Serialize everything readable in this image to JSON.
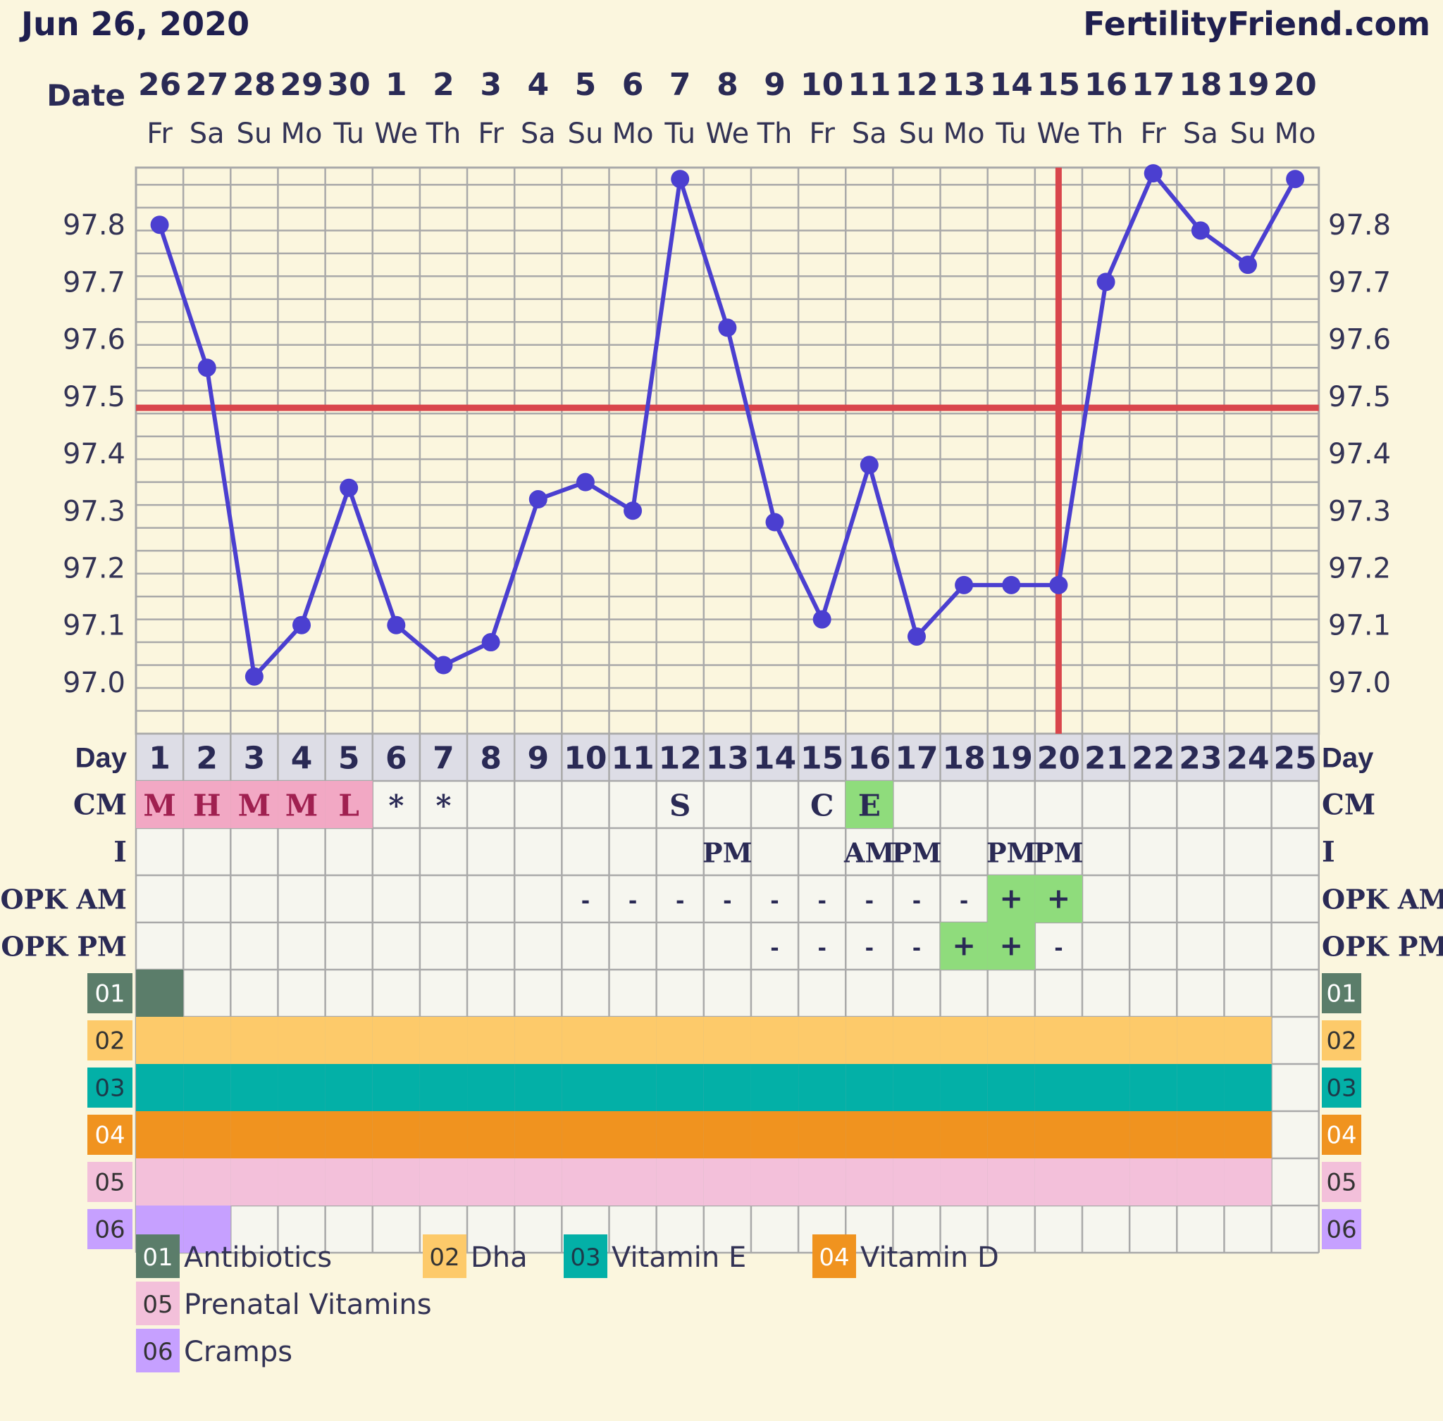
{
  "header": {
    "date": "Jun 26, 2020",
    "site": "FertilityFriend.com"
  },
  "row_labels": {
    "date": "Date",
    "day": "Day",
    "cm": "CM",
    "intercourse": "I",
    "opk_am": "OPK AM",
    "opk_pm": "OPK PM"
  },
  "colors": {
    "background": "#fbf6de",
    "grid": "#a9a9a9",
    "line": "#4b3fd0",
    "coverline": "#d9464c",
    "cm_pink": "#f2a8c4",
    "cm_green": "#8fdc7c",
    "opk_green": "#8fdc7c",
    "day_row": "#dddde6",
    "cell_bg": "#f6f6ef",
    "text": "#2a2a55"
  },
  "chart_data": {
    "type": "line",
    "title": "",
    "dates": [
      "26",
      "27",
      "28",
      "29",
      "30",
      "1",
      "2",
      "3",
      "4",
      "5",
      "6",
      "7",
      "8",
      "9",
      "10",
      "11",
      "12",
      "13",
      "14",
      "15",
      "16",
      "17",
      "18",
      "19",
      "20"
    ],
    "weekdays": [
      "Fr",
      "Sa",
      "Su",
      "Mo",
      "Tu",
      "We",
      "Th",
      "Fr",
      "Sa",
      "Su",
      "Mo",
      "Tu",
      "We",
      "Th",
      "Fr",
      "Sa",
      "Su",
      "Mo",
      "Tu",
      "We",
      "Th",
      "Fr",
      "Sa",
      "Su",
      "Mo"
    ],
    "days": [
      "1",
      "2",
      "3",
      "4",
      "5",
      "6",
      "7",
      "8",
      "9",
      "10",
      "11",
      "12",
      "13",
      "14",
      "15",
      "16",
      "17",
      "18",
      "19",
      "20",
      "21",
      "22",
      "23",
      "24",
      "25"
    ],
    "temps": [
      97.8,
      97.55,
      97.01,
      97.1,
      97.34,
      97.1,
      97.03,
      97.07,
      97.32,
      97.35,
      97.3,
      97.88,
      97.62,
      97.28,
      97.11,
      97.38,
      97.08,
      97.17,
      97.17,
      97.17,
      97.7,
      97.89,
      97.79,
      97.73,
      97.88
    ],
    "yticks": [
      "97.0",
      "97.1",
      "97.2",
      "97.3",
      "97.4",
      "97.5",
      "97.6",
      "97.7",
      "97.8"
    ],
    "ylim": [
      96.91,
      97.9
    ],
    "coverline": 97.48,
    "ovulation_day": 20,
    "cm": [
      "M",
      "H",
      "M",
      "M",
      "L",
      "*",
      "*",
      "",
      "",
      "",
      "",
      "S",
      "",
      "",
      "C",
      "E",
      "",
      "",
      "",
      "",
      "",
      "",
      "",
      "",
      ""
    ],
    "cm_color": [
      "pink",
      "pink",
      "pink",
      "pink",
      "pink",
      "",
      "",
      "",
      "",
      "",
      "",
      "",
      "",
      "",
      "",
      "green",
      "",
      "",
      "",
      "",
      "",
      "",
      "",
      "",
      ""
    ],
    "intercourse": [
      "",
      "",
      "",
      "",
      "",
      "",
      "",
      "",
      "",
      "",
      "",
      "",
      "PM",
      "",
      "",
      "AM",
      "PM",
      "",
      "PM",
      "PM",
      "",
      "",
      "",
      "",
      ""
    ],
    "opk_am": [
      "",
      "",
      "",
      "",
      "",
      "",
      "",
      "",
      "",
      "-",
      "-",
      "-",
      "-",
      "-",
      "-",
      "-",
      "-",
      "-",
      "+",
      "+",
      "",
      "",
      "",
      "",
      ""
    ],
    "opk_pm": [
      "",
      "",
      "",
      "",
      "",
      "",
      "",
      "",
      "",
      "",
      "",
      "",
      "",
      "-",
      "-",
      "-",
      "-",
      "+",
      "+",
      "-",
      "",
      "",
      "",
      "",
      ""
    ],
    "opk_am_color": [
      "",
      "",
      "",
      "",
      "",
      "",
      "",
      "",
      "",
      "",
      "",
      "",
      "",
      "",
      "",
      "",
      "",
      "",
      "green",
      "green",
      "",
      "",
      "",
      "",
      ""
    ],
    "opk_pm_color": [
      "",
      "",
      "",
      "",
      "",
      "",
      "",
      "",
      "",
      "",
      "",
      "",
      "",
      "",
      "",
      "",
      "",
      "green",
      "green",
      "",
      "",
      "",
      "",
      "",
      ""
    ],
    "supplements": [
      {
        "code": "01",
        "name": "Antibiotics",
        "color": "#5b7d6a",
        "textColor": "#ffffff",
        "days": [
          1
        ]
      },
      {
        "code": "02",
        "name": "Dha",
        "color": "#fdca6a",
        "textColor": "#333333",
        "days": [
          1,
          2,
          3,
          4,
          5,
          6,
          7,
          8,
          9,
          10,
          11,
          12,
          13,
          14,
          15,
          16,
          17,
          18,
          19,
          20,
          21,
          22,
          23,
          24
        ]
      },
      {
        "code": "03",
        "name": "Vitamin E",
        "color": "#03b0a7",
        "textColor": "#1d3a4a",
        "days": [
          1,
          2,
          3,
          4,
          5,
          6,
          7,
          8,
          9,
          10,
          11,
          12,
          13,
          14,
          15,
          16,
          17,
          18,
          19,
          20,
          21,
          22,
          23,
          24
        ]
      },
      {
        "code": "04",
        "name": "Vitamin D",
        "color": "#f0931f",
        "textColor": "#ffffff",
        "days": [
          1,
          2,
          3,
          4,
          5,
          6,
          7,
          8,
          9,
          10,
          11,
          12,
          13,
          14,
          15,
          16,
          17,
          18,
          19,
          20,
          21,
          22,
          23,
          24
        ]
      },
      {
        "code": "05",
        "name": "Prenatal Vitamins",
        "color": "#f3c0da",
        "textColor": "#333333",
        "days": [
          1,
          2,
          3,
          4,
          5,
          6,
          7,
          8,
          9,
          10,
          11,
          12,
          13,
          14,
          15,
          16,
          17,
          18,
          19,
          20,
          21,
          22,
          23,
          24
        ]
      },
      {
        "code": "06",
        "name": "Cramps",
        "color": "#c6a0ff",
        "textColor": "#333333",
        "days": [
          1,
          2
        ]
      }
    ]
  }
}
